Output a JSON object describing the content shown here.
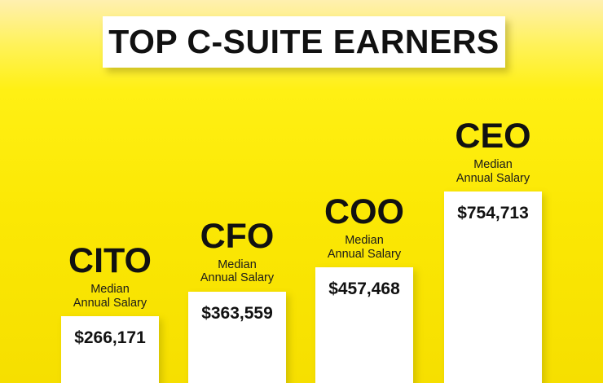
{
  "title": "TOP C-SUITE EARNERS",
  "colors": {
    "background": "#f7e000",
    "bar": "#ffffff",
    "text": "#111111"
  },
  "chart_data": {
    "type": "bar",
    "title": "TOP C-SUITE EARNERS",
    "categories": [
      "CITO",
      "CFO",
      "COO",
      "CEO"
    ],
    "values": [
      266171,
      363559,
      457468,
      754713
    ],
    "value_labels": [
      "$266,171",
      "$363,559",
      "$457,468",
      "$754,713"
    ],
    "caption_line1": "Median",
    "caption_line2": "Annual Salary",
    "xlabel": "",
    "ylabel": ""
  }
}
